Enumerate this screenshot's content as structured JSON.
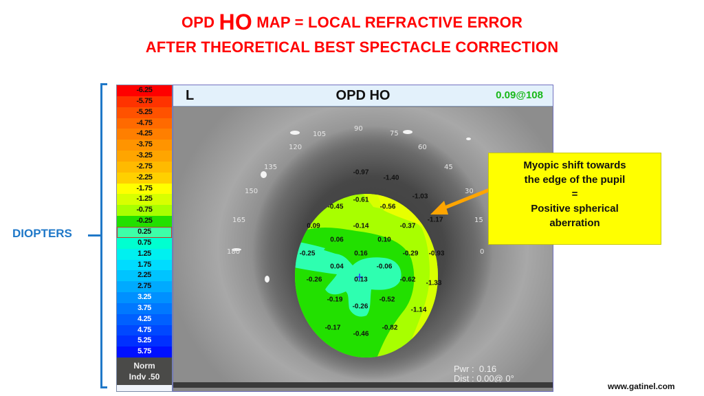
{
  "title": {
    "line1_prefix": "OPD",
    "line1_big": "HO",
    "line1_suffix": "MAP = LOCAL REFRACTIVE ERROR",
    "line2": "AFTER THEORETICAL BEST SPECTACLE CORRECTION",
    "color": "#ff0000"
  },
  "axis_label": {
    "text": "DIOPTERS",
    "color": "#1f78c8"
  },
  "scale": {
    "cells": [
      {
        "label": "-6.25",
        "color": "#ff0000"
      },
      {
        "label": "-5.75",
        "color": "#ff3300"
      },
      {
        "label": "-5.25",
        "color": "#ff5200"
      },
      {
        "label": "-4.75",
        "color": "#ff6a00"
      },
      {
        "label": "-4.25",
        "color": "#ff7f00"
      },
      {
        "label": "-3.75",
        "color": "#ff9400"
      },
      {
        "label": "-3.25",
        "color": "#ffa500"
      },
      {
        "label": "-2.75",
        "color": "#ffba00"
      },
      {
        "label": "-2.25",
        "color": "#ffd000"
      },
      {
        "label": "-1.75",
        "color": "#ffff00"
      },
      {
        "label": "-1.25",
        "color": "#d8ff00"
      },
      {
        "label": "-0.75",
        "color": "#a8ff00"
      },
      {
        "label": "-0.25",
        "color": "#22e000"
      },
      {
        "label": "0.25",
        "color": "#3dffa8"
      },
      {
        "label": "0.75",
        "color": "#00ffd0"
      },
      {
        "label": "1.25",
        "color": "#00f0f0"
      },
      {
        "label": "1.75",
        "color": "#00dcff"
      },
      {
        "label": "2.25",
        "color": "#00c4ff"
      },
      {
        "label": "2.75",
        "color": "#00aaff"
      },
      {
        "label": "3.25",
        "color": "#0090ff"
      },
      {
        "label": "3.75",
        "color": "#0078ff"
      },
      {
        "label": "4.25",
        "color": "#0060ff"
      },
      {
        "label": "4.75",
        "color": "#0048ff"
      },
      {
        "label": "5.25",
        "color": "#0030ff"
      },
      {
        "label": "5.75",
        "color": "#0010ff"
      }
    ],
    "selected_label": "0.25",
    "norm_line1": "Norm",
    "norm_line2": "Indv .50"
  },
  "map": {
    "eye": "L",
    "title": "OPD HO",
    "value": "0.09@108",
    "value_color": "#18b818",
    "angles": [
      "90",
      "105",
      "75",
      "120",
      "60",
      "135",
      "45",
      "150",
      "30",
      "165",
      "15",
      "180",
      "0"
    ],
    "zone_values": [
      "-0.97",
      "-1.40",
      "-1.03",
      "-0.61",
      "-0.45",
      "-0.56",
      "-1.17",
      "0.09",
      "-0.14",
      "-0.37",
      "0.06",
      "0.10",
      "-0.25",
      "0.16",
      "-0.29",
      "-0.93",
      "0.04",
      "-0.06",
      "-0.26",
      "0.13",
      "-0.62",
      "-1.33",
      "-0.19",
      "-0.52",
      "-0.26",
      "-1.14",
      "-0.17",
      "-0.82",
      "-0.46"
    ],
    "pwr_label": "Pwr :",
    "pwr_value": "0.16",
    "dist_label": "Dist :",
    "dist_value": "0.00@  0°"
  },
  "callout": {
    "line1": "Myopic shift towards",
    "line2": "the edge of the pupil",
    "line3": "=",
    "line4": "Positive spherical",
    "line5": "aberration",
    "background": "#ffff00",
    "arrow_color": "#ffa500"
  },
  "footer": {
    "website": "www.gatinel.com"
  }
}
